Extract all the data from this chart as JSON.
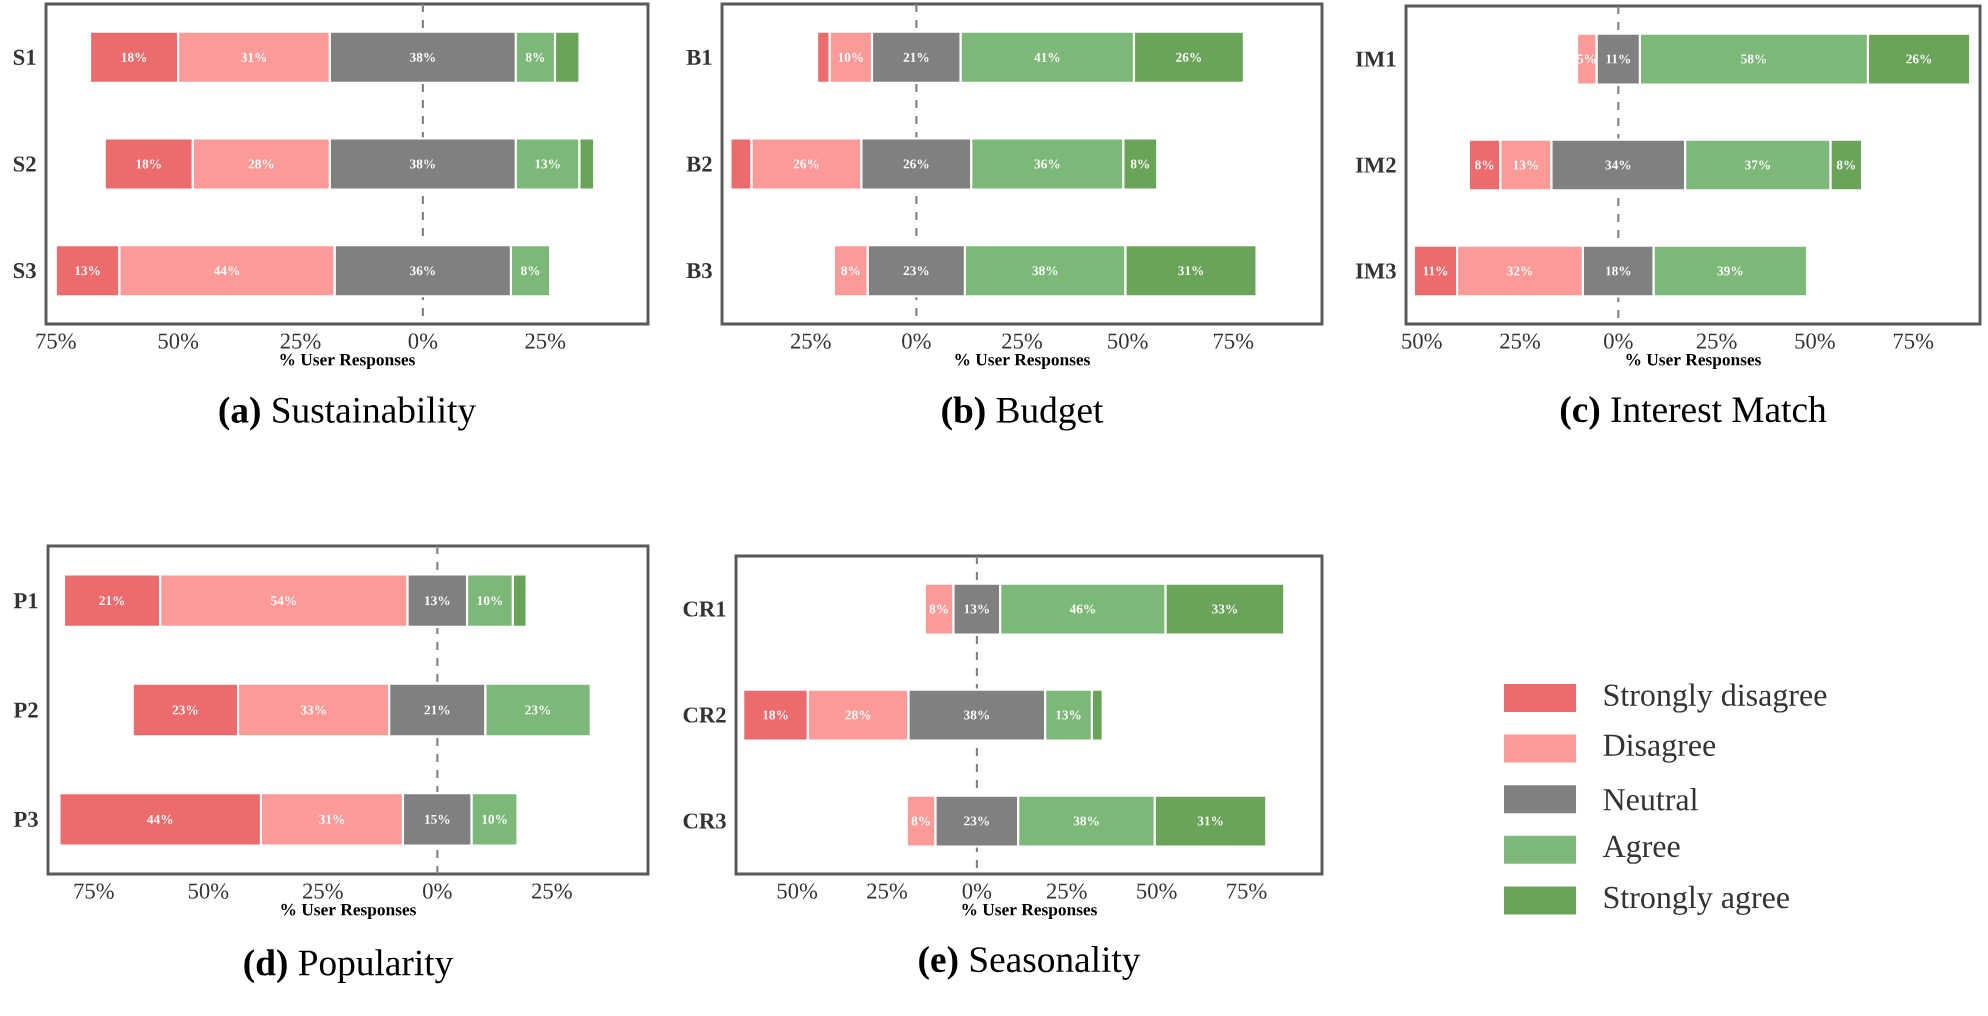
{
  "chart_data": [
    {
      "type": "bar",
      "orientation": "horizontal",
      "title": "**(a)** Sustainability",
      "xlabel": "% User Responses",
      "categories": [
        "S1",
        "S2",
        "S3"
      ],
      "series": [
        {
          "color": "#ec6b6c",
          "base": [
            -68,
            -65,
            -75
          ],
          "values": [
            18,
            18,
            13
          ],
          "value_labels": [
            "18%",
            "18%",
            "13%"
          ]
        },
        {
          "color": "#fc9a97",
          "base": [
            -50,
            -47,
            -62
          ],
          "values": [
            31,
            28,
            44
          ],
          "value_labels": [
            "31%",
            "28%",
            "44%"
          ]
        },
        {
          "color": "#808080",
          "base": [
            -19,
            -19,
            -18
          ],
          "values": [
            38,
            38,
            36
          ],
          "value_labels": [
            "38%",
            "38%",
            "36%"
          ]
        },
        {
          "color": "#7cb877",
          "base": [
            19,
            19,
            18
          ],
          "values": [
            8,
            13,
            8
          ],
          "value_labels": [
            "8%",
            "13%",
            "8%"
          ]
        },
        {
          "color": "#6aa459",
          "base": [
            27,
            32,
            null
          ],
          "values": [
            5,
            3,
            null
          ],
          "value_labels": [
            null,
            null,
            null
          ]
        }
      ],
      "xlim": [
        -77,
        46
      ],
      "xticks": [
        {
          "value": -75,
          "label": "75%"
        },
        {
          "value": -50,
          "label": "50%"
        },
        {
          "value": -25,
          "label": "25%"
        },
        {
          "value": 0,
          "label": "0%"
        },
        {
          "value": 25,
          "label": "25%"
        }
      ],
      "ref_lines": [
        {
          "axis": "x",
          "value": 0,
          "color": "#808080",
          "line_style": "dashed"
        }
      ],
      "legend": false
    },
    {
      "type": "bar",
      "orientation": "horizontal",
      "title": "**(b)** Budget",
      "xlabel": "% User Responses",
      "categories": [
        "B1",
        "B2",
        "B3"
      ],
      "series": [
        {
          "color": "#ec6b6c",
          "base": [
            -23.5,
            -44,
            null
          ],
          "values": [
            3,
            5,
            null
          ],
          "value_labels": [
            null,
            null,
            null
          ]
        },
        {
          "color": "#fc9a97",
          "base": [
            -20.5,
            -39,
            -19.5
          ],
          "values": [
            10,
            26,
            8
          ],
          "value_labels": [
            "10%",
            "26%",
            "8%"
          ]
        },
        {
          "color": "#808080",
          "base": [
            -10.5,
            -13,
            -11.5
          ],
          "values": [
            21,
            26,
            23
          ],
          "value_labels": [
            "21%",
            "26%",
            "23%"
          ]
        },
        {
          "color": "#7cb877",
          "base": [
            10.5,
            13,
            11.5
          ],
          "values": [
            41,
            36,
            38
          ],
          "value_labels": [
            "41%",
            "36%",
            "38%"
          ]
        },
        {
          "color": "#6aa459",
          "base": [
            51.5,
            49,
            49.5
          ],
          "values": [
            26,
            8,
            31
          ],
          "value_labels": [
            "26%",
            "8%",
            "31%"
          ]
        }
      ],
      "xlim": [
        -46,
        96
      ],
      "xticks": [
        {
          "value": -25,
          "label": "25%"
        },
        {
          "value": 0,
          "label": "0%"
        },
        {
          "value": 25,
          "label": "25%"
        },
        {
          "value": 50,
          "label": "50%"
        },
        {
          "value": 75,
          "label": "75%"
        }
      ],
      "ref_lines": [
        {
          "axis": "x",
          "value": 0,
          "color": "#808080",
          "line_style": "dashed"
        }
      ],
      "legend": false
    },
    {
      "type": "bar",
      "orientation": "horizontal",
      "title": "**(c)** Interest Match",
      "xlabel": "% User Responses",
      "categories": [
        "IM1",
        "IM2",
        "IM3"
      ],
      "series": [
        {
          "color": "#ec6b6c",
          "base": [
            null,
            -38,
            -52
          ],
          "values": [
            null,
            8,
            11
          ],
          "value_labels": [
            null,
            "8%",
            "11%"
          ]
        },
        {
          "color": "#fc9a97",
          "base": [
            -10.5,
            -30,
            -41
          ],
          "values": [
            5,
            13,
            32
          ],
          "value_labels": [
            "5%",
            "13%",
            "32%"
          ]
        },
        {
          "color": "#808080",
          "base": [
            -5.5,
            -17,
            -9
          ],
          "values": [
            11,
            34,
            18
          ],
          "value_labels": [
            "11%",
            "34%",
            "18%"
          ]
        },
        {
          "color": "#7cb877",
          "base": [
            5.5,
            17,
            9
          ],
          "values": [
            58,
            37,
            39
          ],
          "value_labels": [
            "58%",
            "37%",
            "39%"
          ]
        },
        {
          "color": "#6aa459",
          "base": [
            63.5,
            54,
            null
          ],
          "values": [
            26,
            8,
            null
          ],
          "value_labels": [
            "26%",
            "8%",
            null
          ]
        }
      ],
      "xlim": [
        -54,
        92
      ],
      "xticks": [
        {
          "value": -50,
          "label": "50%"
        },
        {
          "value": -25,
          "label": "25%"
        },
        {
          "value": 0,
          "label": "0%"
        },
        {
          "value": 25,
          "label": "25%"
        },
        {
          "value": 50,
          "label": "50%"
        },
        {
          "value": 75,
          "label": "75%"
        }
      ],
      "ref_lines": [
        {
          "axis": "x",
          "value": 0,
          "color": "#808080",
          "line_style": "dashed"
        }
      ],
      "legend": false
    },
    {
      "type": "bar",
      "orientation": "horizontal",
      "title": "**(d)** Popularity",
      "xlabel": "% User Responses",
      "categories": [
        "P1",
        "P2",
        "P3"
      ],
      "series": [
        {
          "color": "#ec6b6c",
          "base": [
            -81.5,
            -66.5,
            -82.5
          ],
          "values": [
            21,
            23,
            44
          ],
          "value_labels": [
            "21%",
            "23%",
            "44%"
          ]
        },
        {
          "color": "#fc9a97",
          "base": [
            -60.5,
            -43.5,
            -38.5
          ],
          "values": [
            54,
            33,
            31
          ],
          "value_labels": [
            "54%",
            "33%",
            "31%"
          ]
        },
        {
          "color": "#808080",
          "base": [
            -6.5,
            -10.5,
            -7.5
          ],
          "values": [
            13,
            21,
            15
          ],
          "value_labels": [
            "13%",
            "21%",
            "15%"
          ]
        },
        {
          "color": "#7cb877",
          "base": [
            6.5,
            10.5,
            7.5
          ],
          "values": [
            10,
            23,
            10
          ],
          "value_labels": [
            "10%",
            "23%",
            "10%"
          ]
        },
        {
          "color": "#6aa459",
          "base": [
            16.5,
            null,
            null
          ],
          "values": [
            3,
            null,
            null
          ],
          "value_labels": [
            null,
            null,
            null
          ]
        }
      ],
      "xlim": [
        -85,
        46
      ],
      "xticks": [
        {
          "value": -75,
          "label": "75%"
        },
        {
          "value": -50,
          "label": "50%"
        },
        {
          "value": -25,
          "label": "25%"
        },
        {
          "value": 0,
          "label": "0%"
        },
        {
          "value": 25,
          "label": "25%"
        }
      ],
      "ref_lines": [
        {
          "axis": "x",
          "value": 0,
          "color": "#808080",
          "line_style": "dashed"
        }
      ],
      "legend": false
    },
    {
      "type": "bar",
      "orientation": "horizontal",
      "title": "**(e)** Seasonality",
      "xlabel": "% User Responses",
      "categories": [
        "CR1",
        "CR2",
        "CR3"
      ],
      "series": [
        {
          "name": "Strongly disagree",
          "color": "#ec6b6c",
          "base": [
            null,
            -65,
            null
          ],
          "values": [
            null,
            18,
            null
          ],
          "value_labels": [
            null,
            "18%",
            null
          ]
        },
        {
          "name": "Disagree",
          "color": "#fc9a97",
          "base": [
            -14.5,
            -47,
            -19.5
          ],
          "values": [
            8,
            28,
            8
          ],
          "value_labels": [
            "8%",
            "28%",
            "8%"
          ]
        },
        {
          "name": "Neutral",
          "color": "#808080",
          "base": [
            -6.5,
            -19,
            -11.5
          ],
          "values": [
            13,
            38,
            23
          ],
          "value_labels": [
            "13%",
            "38%",
            "23%"
          ]
        },
        {
          "name": "Agree",
          "color": "#7cb877",
          "base": [
            6.5,
            19,
            11.5
          ],
          "values": [
            46,
            13,
            38
          ],
          "value_labels": [
            "46%",
            "13%",
            "38%"
          ]
        },
        {
          "name": "Strongly agree",
          "color": "#6aa459",
          "base": [
            52.5,
            32,
            49.5
          ],
          "values": [
            33,
            3,
            31
          ],
          "value_labels": [
            "33%",
            null,
            "31%"
          ]
        }
      ],
      "xlim": [
        -67,
        96
      ],
      "xticks": [
        {
          "value": -50,
          "label": "50%"
        },
        {
          "value": -25,
          "label": "25%"
        },
        {
          "value": 0,
          "label": "0%"
        },
        {
          "value": 25,
          "label": "25%"
        },
        {
          "value": 50,
          "label": "50%"
        },
        {
          "value": 75,
          "label": "75%"
        }
      ],
      "ref_lines": [
        {
          "axis": "x",
          "value": 0,
          "color": "#808080",
          "line_style": "dashed"
        }
      ],
      "legend": "right"
    }
  ]
}
